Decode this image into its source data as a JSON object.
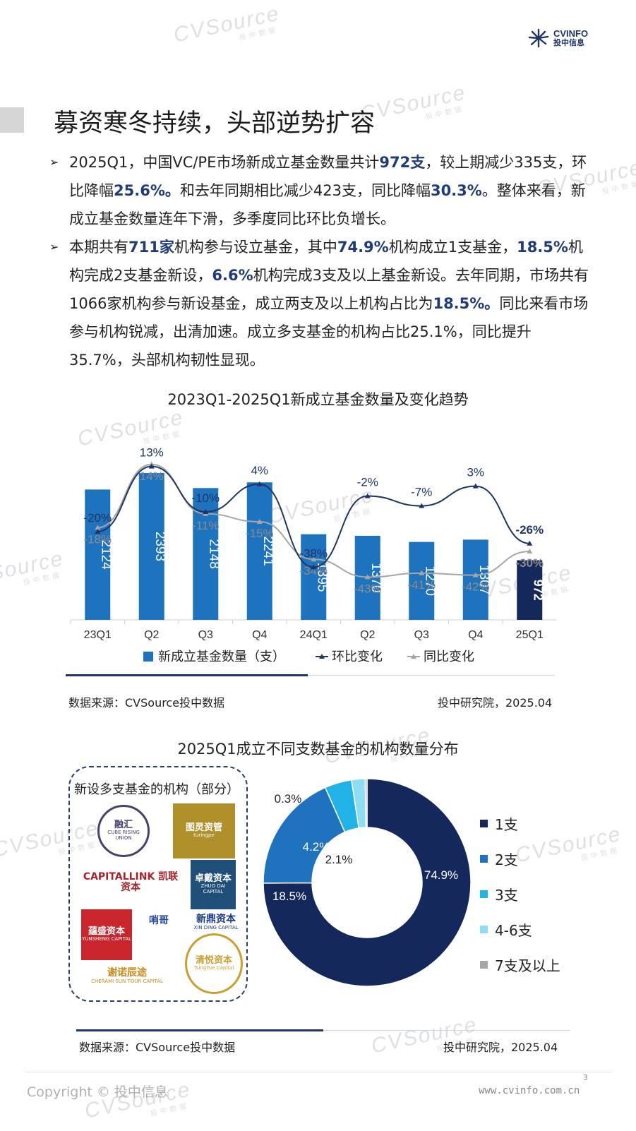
{
  "header": {
    "logo_en": "CVINFO",
    "logo_cn": "投中信息"
  },
  "watermark": {
    "brand": "CVSource",
    "sub": "投中数据"
  },
  "page_title": "募资寒冬持续，头部逆势扩容",
  "bullets": [
    {
      "segments": [
        {
          "t": "2025Q1，中国VC/PE市场新成立基金数量共计",
          "b": false
        },
        {
          "t": "972支",
          "b": true
        },
        {
          "t": "，较上期减少335支，环比降幅",
          "b": false
        },
        {
          "t": "25.6%。",
          "b": true
        },
        {
          "t": "和去年同期相比减少423支，同比降幅",
          "b": false
        },
        {
          "t": "30.3%",
          "b": true
        },
        {
          "t": "。整体来看，新成立基金数量连年下滑，多季度同比环比负增长。",
          "b": false
        }
      ]
    },
    {
      "segments": [
        {
          "t": "本期共有",
          "b": false
        },
        {
          "t": "711家",
          "b": true
        },
        {
          "t": "机构参与设立基金，其中",
          "b": false
        },
        {
          "t": "74.9%",
          "b": true
        },
        {
          "t": "机构成立1支基金，",
          "b": false
        },
        {
          "t": "18.5%",
          "b": true
        },
        {
          "t": "机构完成2支基金新设，",
          "b": false
        },
        {
          "t": "6.6%",
          "b": true
        },
        {
          "t": "机构完成3支及以上基金新设。去年同期，市场共有1066家机构参与新设基金，成立两支及以上机构占比为",
          "b": false
        },
        {
          "t": "18.5%。",
          "b": true
        },
        {
          "t": "同比来看市场参与机构锐减，出清加速。成立多支基金的机构占比25.1%，同比提升35.7%，头部机构韧性显现。",
          "b": false
        }
      ]
    }
  ],
  "chart_data": [
    {
      "type": "bar",
      "title": "2023Q1-2025Q1新成立基金数量及变化趋势",
      "categories": [
        "23Q1",
        "Q2",
        "Q3",
        "Q4",
        "24Q1",
        "Q2",
        "Q3",
        "Q4",
        "25Q1"
      ],
      "series": [
        {
          "name": "新成立基金数量（支）",
          "type": "bar",
          "values": [
            2124,
            2393,
            2148,
            2241,
            1395,
            1370,
            1270,
            1307,
            972
          ],
          "color": "#1e73be",
          "highlight_color": "#14285c"
        },
        {
          "name": "环比变化",
          "type": "line",
          "values": [
            -20,
            13,
            -10,
            4,
            -38,
            -2,
            -7,
            3,
            -26
          ],
          "labels": [
            "-20%",
            "13%",
            "-10%",
            "4%",
            "-38%",
            "-2%",
            "-7%",
            "3%",
            "-26%"
          ],
          "color": "#1f3566"
        },
        {
          "name": "同比变化",
          "type": "line",
          "values": [
            -18,
            14,
            -11,
            -15,
            -34,
            -43,
            -41,
            -42,
            -30
          ],
          "labels": [
            "-18%",
            "14%",
            "-11%",
            "-15%",
            "-34%",
            "-43%",
            "-41%",
            "-42%",
            "-30%"
          ],
          "color": "#a6a6a6"
        }
      ],
      "source": "数据来源：CVSource投中数据",
      "credit": "投中研究院，2025.04"
    },
    {
      "type": "pie",
      "title": "2025Q1成立不同支数基金的机构数量分布",
      "categories": [
        "1支",
        "2支",
        "3支",
        "4-6支",
        "7支及以上"
      ],
      "values": [
        74.9,
        18.5,
        4.2,
        2.1,
        0.3
      ],
      "labels": [
        "74.9%",
        "18.5%",
        "4.2%",
        "2.1%",
        "0.3%"
      ],
      "colors": [
        "#14285c",
        "#1f72bd",
        "#21b2e8",
        "#8fdcf5",
        "#a6a6a6"
      ],
      "source": "数据来源：CVSource投中数据",
      "credit": "投中研究院，2025.04"
    }
  ],
  "orgs": {
    "title": "新设多支基金的机构（部分）",
    "logos": [
      {
        "name": "融汇",
        "sub": "CUBE RISING UNION",
        "color": "#4a3f6f"
      },
      {
        "name": "图灵资管",
        "sub": "turingpe",
        "color": "#b0902a"
      },
      {
        "name": "CAPITALLINK 凯联资本",
        "sub": "",
        "color": "#a8242b"
      },
      {
        "name": "卓戴资本",
        "sub": "ZHUO DAI CAPITAL",
        "color": "#1f4e79"
      },
      {
        "name": "蕴盛资本",
        "sub": "YUNSHENG CAPITAL",
        "color": "#c8262c"
      },
      {
        "name": "哨哥",
        "sub": "",
        "color": "#2a4aa0"
      },
      {
        "name": "新鼎资本",
        "sub": "XIN DING CAPITAL",
        "color": "#1b3a8a"
      },
      {
        "name": "谢诺辰途",
        "sub": "CHERAMI SUN TOUR CAPITAL",
        "color": "#c98a1a"
      },
      {
        "name": "清悦资本",
        "sub": "TsingYue Capital",
        "color": "#c9a030"
      }
    ]
  },
  "footer": {
    "copyright": "Copyright © 投中信息",
    "url": "www.cvinfo.com.cn",
    "page": "3"
  }
}
